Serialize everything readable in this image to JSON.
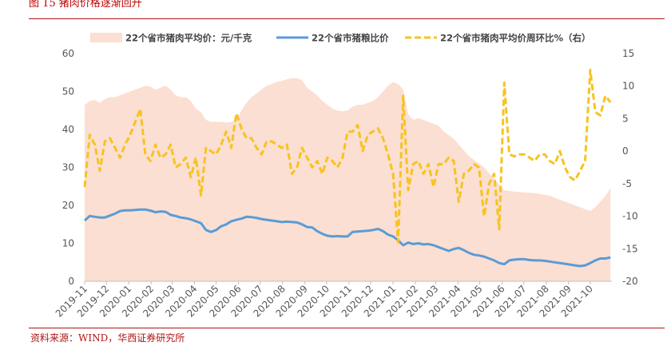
{
  "figure": {
    "title": "图 15 猪肉价格逐渐回升",
    "source": "资料来源：WIND，华西证券研究所"
  },
  "chart_data": {
    "type": "area",
    "categories": [
      "2019-11",
      "2019-12",
      "2020-01",
      "2020-02",
      "2020-03",
      "2020-04",
      "2020-05",
      "2020-06",
      "2020-07",
      "2020-08",
      "2020-09",
      "2020-10",
      "2020-11",
      "2020-12",
      "2021-01",
      "2021-02",
      "2021-03",
      "2021-04",
      "2021-05",
      "2021-06",
      "2021-07",
      "2021-08",
      "2021-09",
      "2021-10"
    ],
    "x_start": "2019-11-01",
    "x_end": "2021-10-31",
    "left_axis": {
      "ylim": [
        0,
        60
      ],
      "ticks": [
        0,
        10,
        20,
        30,
        40,
        50,
        60
      ]
    },
    "right_axis": {
      "ylim": [
        -20,
        15
      ],
      "ticks": [
        -20,
        -15,
        -10,
        -5,
        0,
        5,
        10,
        15
      ]
    },
    "grid": false,
    "legend_position": "top",
    "colors": {
      "pork": "#fbdfd2",
      "ratio": "#5b9bd5",
      "wow": "#f7c320",
      "accent": "#b01515"
    },
    "series": [
      {
        "name": "22个省市猪肉平均价：元/千克",
        "type": "area",
        "axis": "left",
        "x": [
          "2019-11-01",
          "2019-11-08",
          "2019-11-15",
          "2019-11-22",
          "2019-11-29",
          "2019-12-06",
          "2019-12-13",
          "2019-12-20",
          "2019-12-27",
          "2020-01-03",
          "2020-01-10",
          "2020-01-17",
          "2020-01-24",
          "2020-01-31",
          "2020-02-07",
          "2020-02-14",
          "2020-02-21",
          "2020-02-28",
          "2020-03-06",
          "2020-03-13",
          "2020-03-20",
          "2020-03-27",
          "2020-04-03",
          "2020-04-10",
          "2020-04-17",
          "2020-04-24",
          "2020-05-01",
          "2020-05-08",
          "2020-05-15",
          "2020-05-22",
          "2020-05-29",
          "2020-06-05",
          "2020-06-12",
          "2020-06-19",
          "2020-06-26",
          "2020-07-03",
          "2020-07-10",
          "2020-07-17",
          "2020-07-24",
          "2020-07-31",
          "2020-08-07",
          "2020-08-14",
          "2020-08-21",
          "2020-08-28",
          "2020-09-04",
          "2020-09-11",
          "2020-09-18",
          "2020-09-25",
          "2020-10-02",
          "2020-10-09",
          "2020-10-16",
          "2020-10-23",
          "2020-10-30",
          "2020-11-06",
          "2020-11-13",
          "2020-11-20",
          "2020-11-27",
          "2020-12-04",
          "2020-12-11",
          "2020-12-18",
          "2020-12-25",
          "2021-01-01",
          "2021-01-08",
          "2021-01-15",
          "2021-01-22",
          "2021-01-29",
          "2021-02-05",
          "2021-02-12",
          "2021-02-19",
          "2021-02-26",
          "2021-03-05",
          "2021-03-12",
          "2021-03-19",
          "2021-03-26",
          "2021-04-02",
          "2021-04-09",
          "2021-04-16",
          "2021-04-23",
          "2021-04-30",
          "2021-05-07",
          "2021-05-14",
          "2021-05-21",
          "2021-05-28",
          "2021-06-04",
          "2021-06-11",
          "2021-06-18",
          "2021-06-25",
          "2021-07-02",
          "2021-07-09",
          "2021-07-16",
          "2021-07-23",
          "2021-07-30",
          "2021-08-06",
          "2021-08-13",
          "2021-08-20",
          "2021-08-27",
          "2021-09-03",
          "2021-09-10",
          "2021-09-17",
          "2021-09-24",
          "2021-10-01",
          "2021-10-08",
          "2021-10-15",
          "2021-10-22",
          "2021-10-29"
        ],
        "values": [
          46.5,
          47.5,
          47.8,
          47.0,
          48.0,
          48.5,
          48.5,
          49.0,
          49.5,
          50.0,
          50.5,
          51.0,
          51.5,
          51.3,
          50.5,
          51.0,
          51.5,
          50.5,
          49.0,
          48.5,
          48.5,
          47.5,
          45.5,
          44.5,
          42.5,
          42.0,
          42.0,
          42.0,
          41.8,
          42.0,
          42.5,
          45.0,
          47.0,
          48.5,
          49.5,
          50.5,
          51.5,
          52.0,
          52.5,
          52.8,
          53.2,
          53.5,
          53.5,
          53.0,
          51.0,
          50.0,
          49.0,
          47.5,
          46.5,
          45.5,
          45.0,
          44.8,
          45.0,
          46.0,
          46.5,
          46.5,
          47.0,
          47.5,
          48.5,
          50.0,
          51.5,
          52.5,
          52.0,
          50.5,
          44.0,
          42.5,
          43.0,
          42.5,
          42.0,
          41.5,
          41.0,
          39.5,
          38.5,
          37.5,
          36.0,
          34.5,
          33.0,
          32.0,
          31.0,
          30.0,
          28.5,
          27.0,
          25.5,
          24.0,
          23.8,
          23.6,
          23.5,
          23.4,
          23.3,
          23.2,
          23.0,
          22.8,
          22.5,
          22.0,
          21.5,
          21.0,
          20.5,
          20.0,
          19.5,
          19.0,
          18.5,
          19.5,
          21.0,
          22.5,
          24.5
        ]
      },
      {
        "name": "22个省市猪粮比价",
        "type": "line",
        "axis": "left",
        "x": [
          "2019-11-01",
          "2019-11-08",
          "2019-11-15",
          "2019-11-22",
          "2019-11-29",
          "2019-12-06",
          "2019-12-13",
          "2019-12-20",
          "2019-12-27",
          "2020-01-03",
          "2020-01-10",
          "2020-01-17",
          "2020-01-24",
          "2020-01-31",
          "2020-02-07",
          "2020-02-14",
          "2020-02-21",
          "2020-02-28",
          "2020-03-06",
          "2020-03-13",
          "2020-03-20",
          "2020-03-27",
          "2020-04-03",
          "2020-04-10",
          "2020-04-17",
          "2020-04-24",
          "2020-05-01",
          "2020-05-08",
          "2020-05-15",
          "2020-05-22",
          "2020-05-29",
          "2020-06-05",
          "2020-06-12",
          "2020-06-19",
          "2020-06-26",
          "2020-07-03",
          "2020-07-10",
          "2020-07-17",
          "2020-07-24",
          "2020-07-31",
          "2020-08-07",
          "2020-08-14",
          "2020-08-21",
          "2020-08-28",
          "2020-09-04",
          "2020-09-11",
          "2020-09-18",
          "2020-09-25",
          "2020-10-02",
          "2020-10-09",
          "2020-10-16",
          "2020-10-23",
          "2020-10-30",
          "2020-11-06",
          "2020-11-13",
          "2020-11-20",
          "2020-11-27",
          "2020-12-04",
          "2020-12-11",
          "2020-12-18",
          "2020-12-25",
          "2021-01-01",
          "2021-01-08",
          "2021-01-15",
          "2021-01-22",
          "2021-01-29",
          "2021-02-05",
          "2021-02-12",
          "2021-02-19",
          "2021-02-26",
          "2021-03-05",
          "2021-03-12",
          "2021-03-19",
          "2021-03-26",
          "2021-04-02",
          "2021-04-09",
          "2021-04-16",
          "2021-04-23",
          "2021-04-30",
          "2021-05-07",
          "2021-05-14",
          "2021-05-21",
          "2021-05-28",
          "2021-06-04",
          "2021-06-11",
          "2021-06-18",
          "2021-06-25",
          "2021-07-02",
          "2021-07-09",
          "2021-07-16",
          "2021-07-23",
          "2021-07-30",
          "2021-08-06",
          "2021-08-13",
          "2021-08-20",
          "2021-08-27",
          "2021-09-03",
          "2021-09-10",
          "2021-09-17",
          "2021-09-24",
          "2021-10-01",
          "2021-10-08",
          "2021-10-15",
          "2021-10-22",
          "2021-10-29"
        ],
        "values": [
          16.0,
          17.2,
          17.0,
          16.8,
          16.8,
          17.3,
          17.8,
          18.5,
          18.7,
          18.7,
          18.8,
          18.9,
          18.9,
          18.6,
          18.2,
          18.4,
          18.3,
          17.5,
          17.2,
          16.8,
          16.6,
          16.3,
          15.8,
          15.3,
          13.5,
          13.0,
          13.5,
          14.5,
          15.0,
          15.8,
          16.2,
          16.5,
          17.0,
          16.9,
          16.7,
          16.4,
          16.2,
          16.0,
          15.8,
          15.6,
          15.7,
          15.6,
          15.5,
          15.0,
          14.3,
          14.2,
          13.2,
          12.5,
          12.0,
          11.8,
          11.9,
          11.8,
          11.8,
          13.0,
          13.1,
          13.2,
          13.3,
          13.5,
          13.8,
          13.2,
          12.3,
          11.8,
          10.8,
          9.5,
          10.2,
          9.8,
          10.0,
          9.7,
          9.8,
          9.5,
          9.0,
          8.5,
          8.0,
          8.5,
          8.8,
          8.2,
          7.5,
          7.0,
          6.8,
          6.5,
          6.0,
          5.5,
          4.8,
          4.5,
          5.5,
          5.7,
          5.8,
          5.8,
          5.6,
          5.5,
          5.5,
          5.4,
          5.2,
          5.0,
          4.8,
          4.6,
          4.4,
          4.2,
          4.0,
          4.2,
          4.8,
          5.5,
          6.0,
          6.0,
          6.3
        ]
      },
      {
        "name": "22个省市猪肉平均价周环比%（右）",
        "type": "line",
        "axis": "right",
        "dashed": true,
        "x": [
          "2019-11-01",
          "2019-11-08",
          "2019-11-15",
          "2019-11-22",
          "2019-11-29",
          "2019-12-06",
          "2019-12-13",
          "2019-12-20",
          "2019-12-27",
          "2020-01-03",
          "2020-01-10",
          "2020-01-17",
          "2020-01-24",
          "2020-01-31",
          "2020-02-07",
          "2020-02-14",
          "2020-02-21",
          "2020-02-28",
          "2020-03-06",
          "2020-03-13",
          "2020-03-20",
          "2020-03-27",
          "2020-04-03",
          "2020-04-10",
          "2020-04-17",
          "2020-04-24",
          "2020-05-01",
          "2020-05-08",
          "2020-05-15",
          "2020-05-22",
          "2020-05-29",
          "2020-06-05",
          "2020-06-12",
          "2020-06-19",
          "2020-06-26",
          "2020-07-03",
          "2020-07-10",
          "2020-07-17",
          "2020-07-24",
          "2020-07-31",
          "2020-08-07",
          "2020-08-14",
          "2020-08-21",
          "2020-08-28",
          "2020-09-04",
          "2020-09-11",
          "2020-09-18",
          "2020-09-25",
          "2020-10-02",
          "2020-10-09",
          "2020-10-16",
          "2020-10-23",
          "2020-10-30",
          "2020-11-06",
          "2020-11-13",
          "2020-11-20",
          "2020-11-27",
          "2020-12-04",
          "2020-12-11",
          "2020-12-18",
          "2020-12-25",
          "2021-01-01",
          "2021-01-08",
          "2021-01-15",
          "2021-01-22",
          "2021-01-29",
          "2021-02-05",
          "2021-02-12",
          "2021-02-19",
          "2021-02-26",
          "2021-03-05",
          "2021-03-12",
          "2021-03-19",
          "2021-03-26",
          "2021-04-02",
          "2021-04-09",
          "2021-04-16",
          "2021-04-23",
          "2021-04-30",
          "2021-05-07",
          "2021-05-14",
          "2021-05-21",
          "2021-05-28",
          "2021-06-04",
          "2021-06-11",
          "2021-06-18",
          "2021-06-25",
          "2021-07-02",
          "2021-07-09",
          "2021-07-16",
          "2021-07-23",
          "2021-07-30",
          "2021-08-06",
          "2021-08-13",
          "2021-08-20",
          "2021-08-27",
          "2021-09-03",
          "2021-09-10",
          "2021-09-17",
          "2021-09-24",
          "2021-10-01",
          "2021-10-08",
          "2021-10-15",
          "2021-10-22",
          "2021-10-29"
        ],
        "values": [
          -5.5,
          2.5,
          1.0,
          -3.0,
          1.5,
          2.0,
          0.5,
          -1.0,
          1.0,
          2.5,
          4.5,
          6.5,
          -0.5,
          -1.5,
          1.0,
          -1.0,
          -0.5,
          1.0,
          -2.5,
          -2.0,
          -1.0,
          -4.0,
          -1.0,
          -6.8,
          0.5,
          0.0,
          -0.5,
          1.0,
          3.0,
          0.5,
          5.8,
          3.5,
          2.0,
          2.0,
          0.5,
          -0.5,
          1.5,
          1.5,
          1.0,
          0.5,
          1.0,
          -3.5,
          -2.5,
          0.5,
          -1.0,
          -2.5,
          -1.5,
          -3.5,
          -1.0,
          -1.5,
          -2.5,
          -1.0,
          3.0,
          3.0,
          4.0,
          0.0,
          2.5,
          3.0,
          3.5,
          2.0,
          -0.5,
          -3.5,
          -14.0,
          8.5,
          -6.0,
          -2.0,
          -1.5,
          -3.5,
          -2.0,
          -5.5,
          -2.0,
          -2.0,
          -1.0,
          -1.5,
          -7.8,
          -3.5,
          -3.0,
          -2.0,
          -2.5,
          -10.0,
          -5.0,
          -3.5,
          -12.0,
          10.5,
          -0.5,
          -0.8,
          -0.5,
          -0.5,
          -1.0,
          -1.5,
          -0.5,
          -0.5,
          -1.5,
          -2.0,
          0.0,
          -2.5,
          -4.0,
          -4.5,
          -3.0,
          -1.5,
          12.5,
          6.0,
          5.5,
          8.5,
          7.5
        ]
      }
    ]
  }
}
